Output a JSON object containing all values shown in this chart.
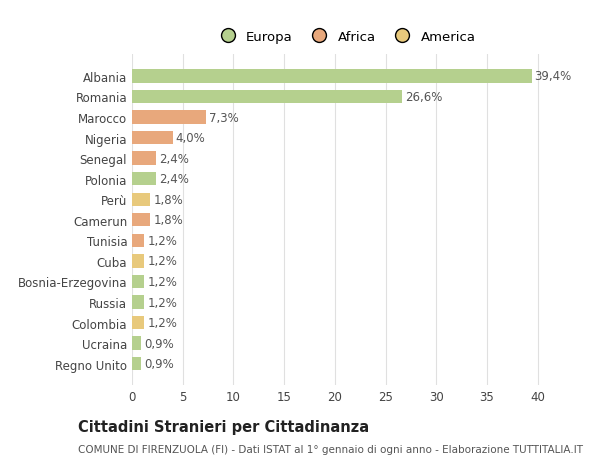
{
  "categories": [
    "Albania",
    "Romania",
    "Marocco",
    "Nigeria",
    "Senegal",
    "Polonia",
    "Perù",
    "Camerun",
    "Tunisia",
    "Cuba",
    "Bosnia-Erzegovina",
    "Russia",
    "Colombia",
    "Ucraina",
    "Regno Unito"
  ],
  "values": [
    39.4,
    26.6,
    7.3,
    4.0,
    2.4,
    2.4,
    1.8,
    1.8,
    1.2,
    1.2,
    1.2,
    1.2,
    1.2,
    0.9,
    0.9
  ],
  "labels": [
    "39,4%",
    "26,6%",
    "7,3%",
    "4,0%",
    "2,4%",
    "2,4%",
    "1,8%",
    "1,8%",
    "1,2%",
    "1,2%",
    "1,2%",
    "1,2%",
    "1,2%",
    "0,9%",
    "0,9%"
  ],
  "colors": [
    "#b5d08e",
    "#b5d08e",
    "#e8a87c",
    "#e8a87c",
    "#e8a87c",
    "#b5d08e",
    "#e8c97c",
    "#e8a87c",
    "#e8a87c",
    "#e8c97c",
    "#b5d08e",
    "#b5d08e",
    "#e8c97c",
    "#b5d08e",
    "#b5d08e"
  ],
  "legend_labels": [
    "Europa",
    "Africa",
    "America"
  ],
  "legend_colors": [
    "#b5d08e",
    "#e8a87c",
    "#e8c97c"
  ],
  "title1": "Cittadini Stranieri per Cittadinanza",
  "title2": "COMUNE DI FIRENZUOLA (FI) - Dati ISTAT al 1° gennaio di ogni anno - Elaborazione TUTTITALIA.IT",
  "xlim": [
    0,
    42
  ],
  "xticks": [
    0,
    5,
    10,
    15,
    20,
    25,
    30,
    35,
    40
  ],
  "bg_color": "#ffffff",
  "grid_color": "#e0e0e0",
  "bar_height": 0.65,
  "label_fontsize": 8.5,
  "tick_fontsize": 8.5,
  "title1_fontsize": 10.5,
  "title2_fontsize": 7.5
}
